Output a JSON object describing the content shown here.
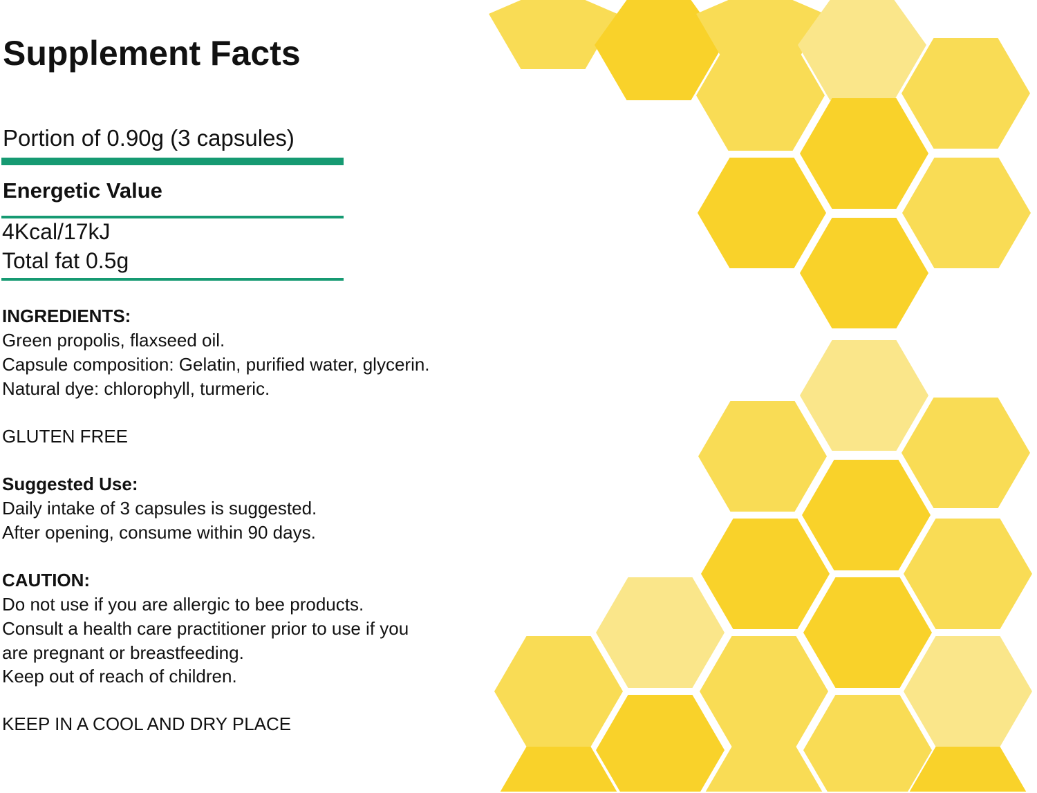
{
  "title": "Supplement Facts",
  "portion": "Portion of 0.90g (3 capsules)",
  "energetic_value": {
    "heading": "Energetic Value",
    "values": [
      "4Kcal/17kJ",
      "Total fat 0.5g"
    ]
  },
  "ingredients": {
    "heading": "INGREDIENTS:",
    "lines": [
      "Green propolis, flaxseed oil.",
      "Capsule composition: Gelatin, purified water, glycerin.",
      "Natural dye: chlorophyll, turmeric."
    ]
  },
  "gluten_free": "GLUTEN FREE",
  "suggested_use": {
    "heading": "Suggested Use:",
    "lines": [
      "Daily intake of 3 capsules is suggested.",
      "After opening, consume within 90 days."
    ]
  },
  "caution": {
    "heading": "CAUTION:",
    "lines": [
      "Do not use if you are allergic to bee products.",
      "Consult a health care practitioner prior to use if you",
      "are pregnant or breastfeeding.",
      "Keep out of reach of children."
    ]
  },
  "storage": "KEEP IN A COOL AND DRY PLACE",
  "colors": {
    "rule": "#169a72",
    "hex_dark": "#f9d22a",
    "hex_medium": "#f9dc55",
    "hex_light": "#fae68a"
  },
  "decoration": "honeycomb-pattern"
}
